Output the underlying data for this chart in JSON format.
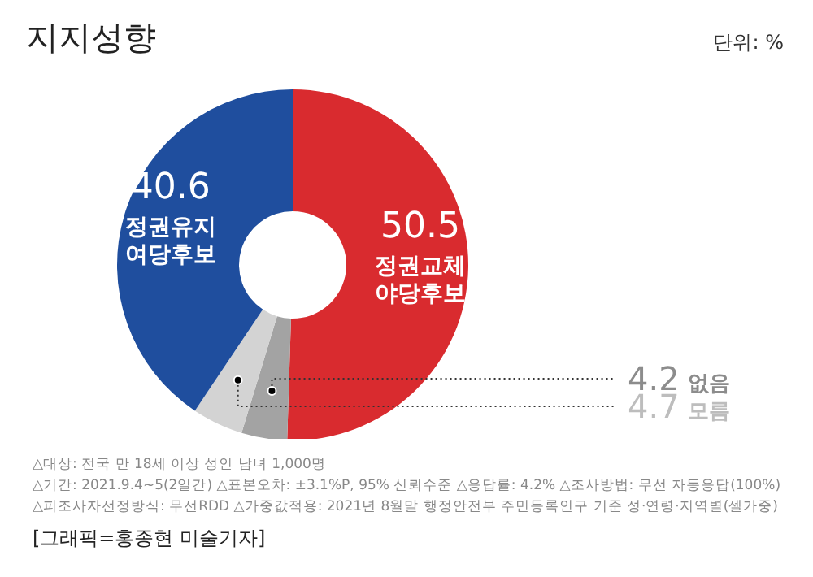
{
  "chart_data": {
    "type": "donut",
    "title": "지지성향",
    "categories": [
      "정권교체\n야당후보",
      "없음",
      "모름",
      "정권유지\n여당후보"
    ],
    "values": [
      50.5,
      4.2,
      4.7,
      40.6
    ],
    "colors": [
      "#d92b2f",
      "#a3a3a3",
      "#d3d3d3",
      "#1f4e9e"
    ],
    "data_labels": true,
    "legend": false,
    "annotations": [
      "단위: %",
      "△대상: 전국 만 18세 이상 성인 남녀 1,000명",
      "△기간: 2021.9.4~5(2일간)  △표본오차: ±3.1%P, 95% 신뢰수준  △응답률: 4.2%  △조사방법: 무선 자동응답(100%)",
      "△피조사자선정방식: 무선RDD  △가중값적용: 2021년 8월말 행정안전부 주민등록인구 기준 성·연령·지역별(셀가중)",
      "[그래픽=홍종현 미술기자]"
    ]
  }
}
